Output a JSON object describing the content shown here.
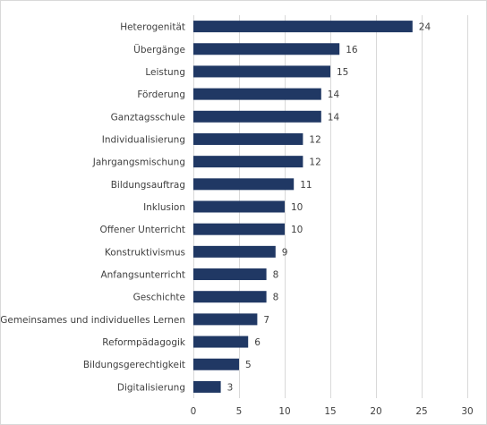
{
  "chart_data": {
    "type": "bar",
    "orientation": "horizontal",
    "categories": [
      "Heterogenität",
      "Übergänge",
      "Leistung",
      "Förderung",
      "Ganztagsschule",
      "Individualisierung",
      "Jahrgangsmischung",
      "Bildungsauftrag",
      "Inklusion",
      "Offener Unterricht",
      "Konstruktivismus",
      "Anfangsunterricht",
      "Geschichte",
      "Gemeinsames und individuelles Lernen",
      "Reformpädagogik",
      "Bildungsgerechtigkeit",
      "Digitalisierung"
    ],
    "values": [
      24,
      16,
      15,
      14,
      14,
      12,
      12,
      11,
      10,
      10,
      9,
      8,
      8,
      7,
      6,
      5,
      3
    ],
    "xlim": [
      0,
      30
    ],
    "xticks": [
      0,
      5,
      10,
      15,
      20,
      25,
      30
    ],
    "grid": "vertical",
    "bar_color": "#203864",
    "data_labels": true,
    "title": "",
    "xlabel": "",
    "ylabel": ""
  }
}
